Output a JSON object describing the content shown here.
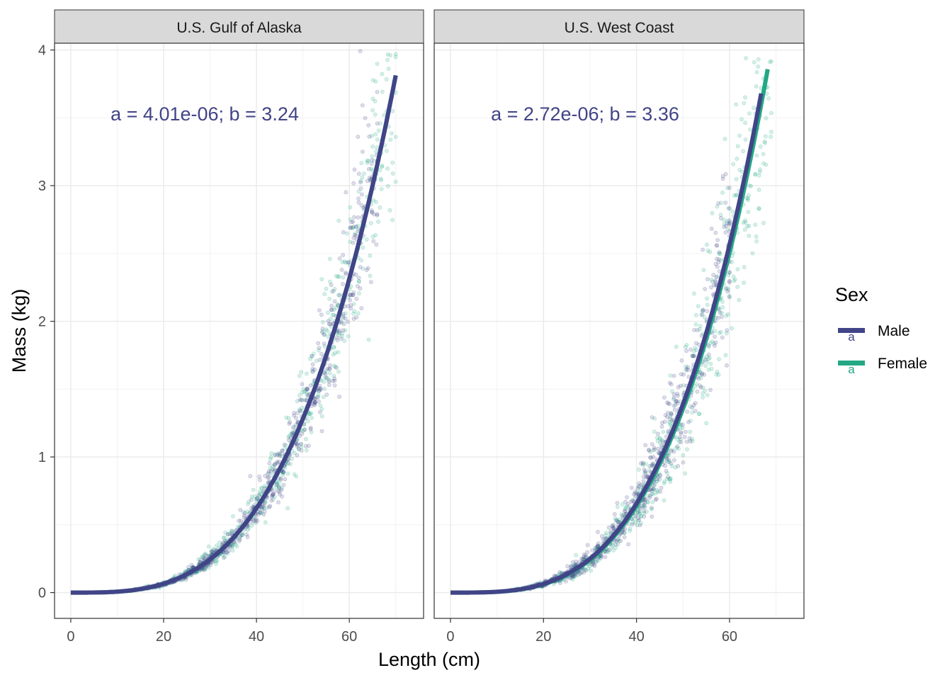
{
  "chart_data": {
    "type": "scatter",
    "xlabel": "Length (cm)",
    "ylabel": "Mass (kg)",
    "xlim": [
      -3.5,
      76
    ],
    "ylim": [
      -0.19,
      4.05
    ],
    "x_ticks": [
      0,
      20,
      40,
      60
    ],
    "y_ticks": [
      0,
      1,
      2,
      3,
      4
    ],
    "grid": true,
    "legend": {
      "title": "Sex",
      "placement": "right",
      "key_glyph": "a",
      "entries": [
        {
          "label": "Male",
          "color": "#414487"
        },
        {
          "label": "Female",
          "color": "#22A884"
        }
      ]
    },
    "colors": {
      "male": "#414487",
      "female": "#22A884",
      "annotation": "#414487",
      "strip_bg": "#D9D9D9",
      "grid": "#EBEBEB",
      "panel_border": "#333333"
    },
    "panels": [
      {
        "strip_label": "U.S. Gulf of Alaska",
        "annotation": "a = 4.01e-06; b = 3.24",
        "series": [
          {
            "name": "Male",
            "fit": {
              "a": 4.01e-06,
              "b": 3.24,
              "x_range": [
                0,
                70
              ]
            },
            "points_x_range": [
              10,
              66
            ],
            "spread": 0.11
          },
          {
            "name": "Female",
            "fit": {
              "a": 4.01e-06,
              "b": 3.24,
              "x_range": [
                0,
                70
              ]
            },
            "points_x_range": [
              10,
              70
            ],
            "spread": 0.12
          }
        ]
      },
      {
        "strip_label": "U.S. West Coast",
        "annotation": "a = 2.72e-06; b = 3.36",
        "series": [
          {
            "name": "Male",
            "fit": {
              "a": 2.72e-06,
              "b": 3.36,
              "x_range": [
                0,
                66.8
              ]
            },
            "points_x_range": [
              12,
              60
            ],
            "spread": 0.14
          },
          {
            "name": "Female",
            "fit": {
              "a": 2.55e-06,
              "b": 3.37,
              "x_range": [
                0,
                68.2
              ]
            },
            "points_x_range": [
              12,
              69
            ],
            "spread": 0.15
          }
        ]
      }
    ]
  }
}
